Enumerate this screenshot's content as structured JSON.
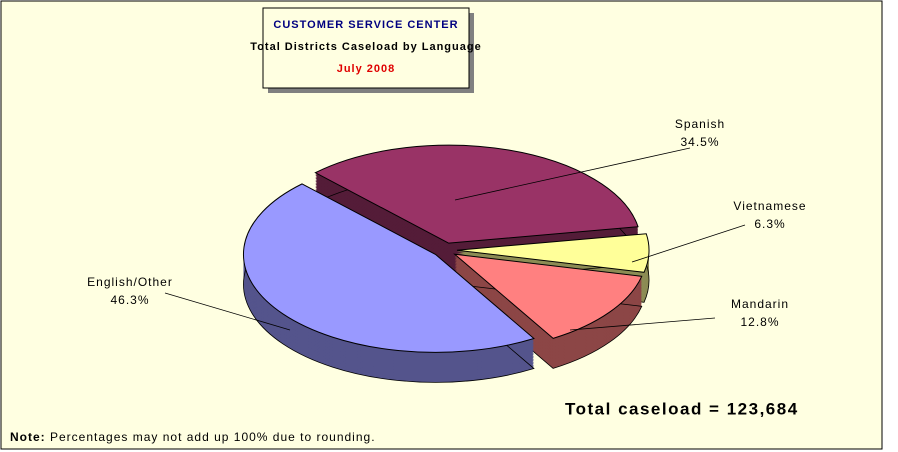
{
  "chart_data": {
    "type": "pie",
    "title": "CUSTOMER SERVICE CENTER",
    "subtitle": "Total Districts Caseload by Language",
    "date": "July 2008",
    "categories": [
      "Spanish",
      "Vietnamese",
      "Mandarin",
      "English/Other"
    ],
    "values": [
      34.5,
      6.3,
      12.8,
      46.3
    ],
    "value_labels": [
      "34.5%",
      "6.3%",
      "12.8%",
      "46.3%"
    ],
    "colors": [
      "#993366",
      "#ffff99",
      "#ff8080",
      "#9999ff"
    ],
    "total": "Total caseload = 123,684",
    "note_label": "Note:",
    "note": "Percentages may not add up 100% due to rounding."
  }
}
